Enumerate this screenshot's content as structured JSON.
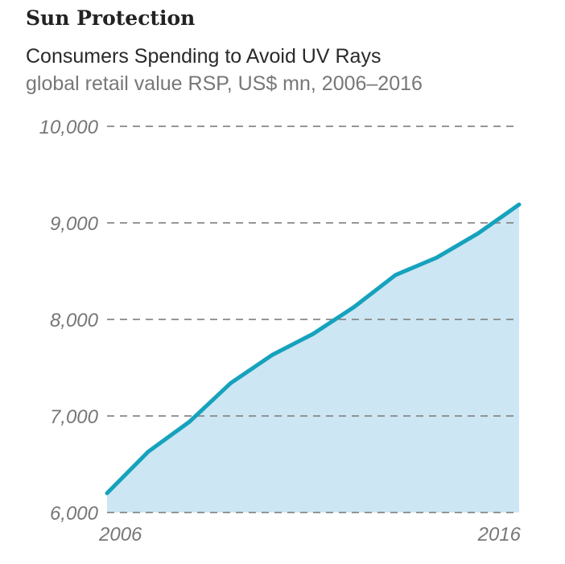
{
  "chart_data": {
    "type": "area",
    "title": "Sun Protection",
    "subtitle": "Consumers Spending to Avoid UV Rays",
    "description_line": "global retail value RSP, US$ mn, 2006–2016",
    "xlabel": "",
    "ylabel": "",
    "x": [
      2006,
      2007,
      2008,
      2009,
      2010,
      2011,
      2012,
      2013,
      2014,
      2015,
      2016
    ],
    "values": [
      6200,
      6630,
      6940,
      7340,
      7630,
      7850,
      8130,
      8460,
      8640,
      8890,
      9190
    ],
    "xlim": [
      2006,
      2016
    ],
    "ylim": [
      6000,
      10000
    ],
    "x_tick_labels": [
      "2006",
      "2016"
    ],
    "y_tick_labels": [
      "6,000",
      "7,000",
      "8,000",
      "9,000",
      "10,000"
    ],
    "y_ticks": [
      6000,
      7000,
      8000,
      9000,
      10000
    ],
    "grid": "horizontal dashed",
    "colors": {
      "line": "#16a2bd",
      "fill": "#cde6f3",
      "grid": "#888888"
    }
  }
}
